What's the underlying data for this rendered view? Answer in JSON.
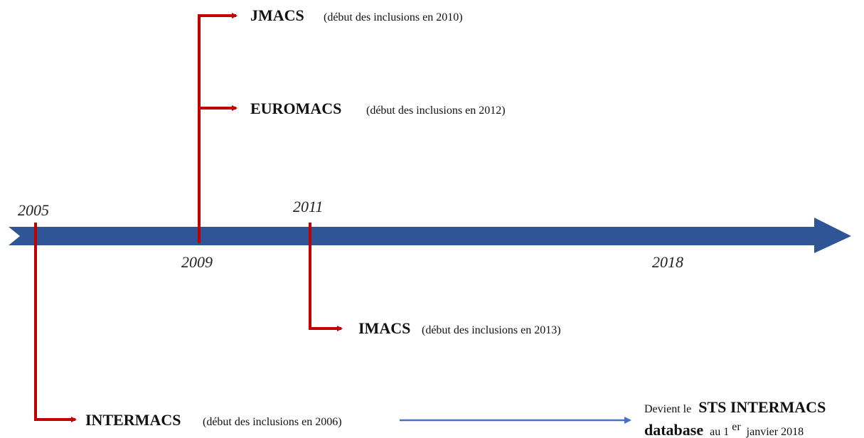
{
  "years": [
    "2005",
    "2009",
    "2011",
    "2018"
  ],
  "registries": [
    {
      "name": "JMACS",
      "note": "(début des inclusions en 2010)"
    },
    {
      "name": "EUROMACS",
      "note": "(début des inclusions en 2012)"
    },
    {
      "name": "IMACS",
      "note": "(début des inclusions en 2013)"
    },
    {
      "name": "INTERMACS",
      "note": "(début des inclusions en 2006)"
    }
  ],
  "outcome": {
    "prefix": "Devient le",
    "name": "STS INTERMACS",
    "name_cont": "database",
    "date_start": "au 1",
    "date_sup": "er",
    "date_end": "janvier 2018"
  }
}
